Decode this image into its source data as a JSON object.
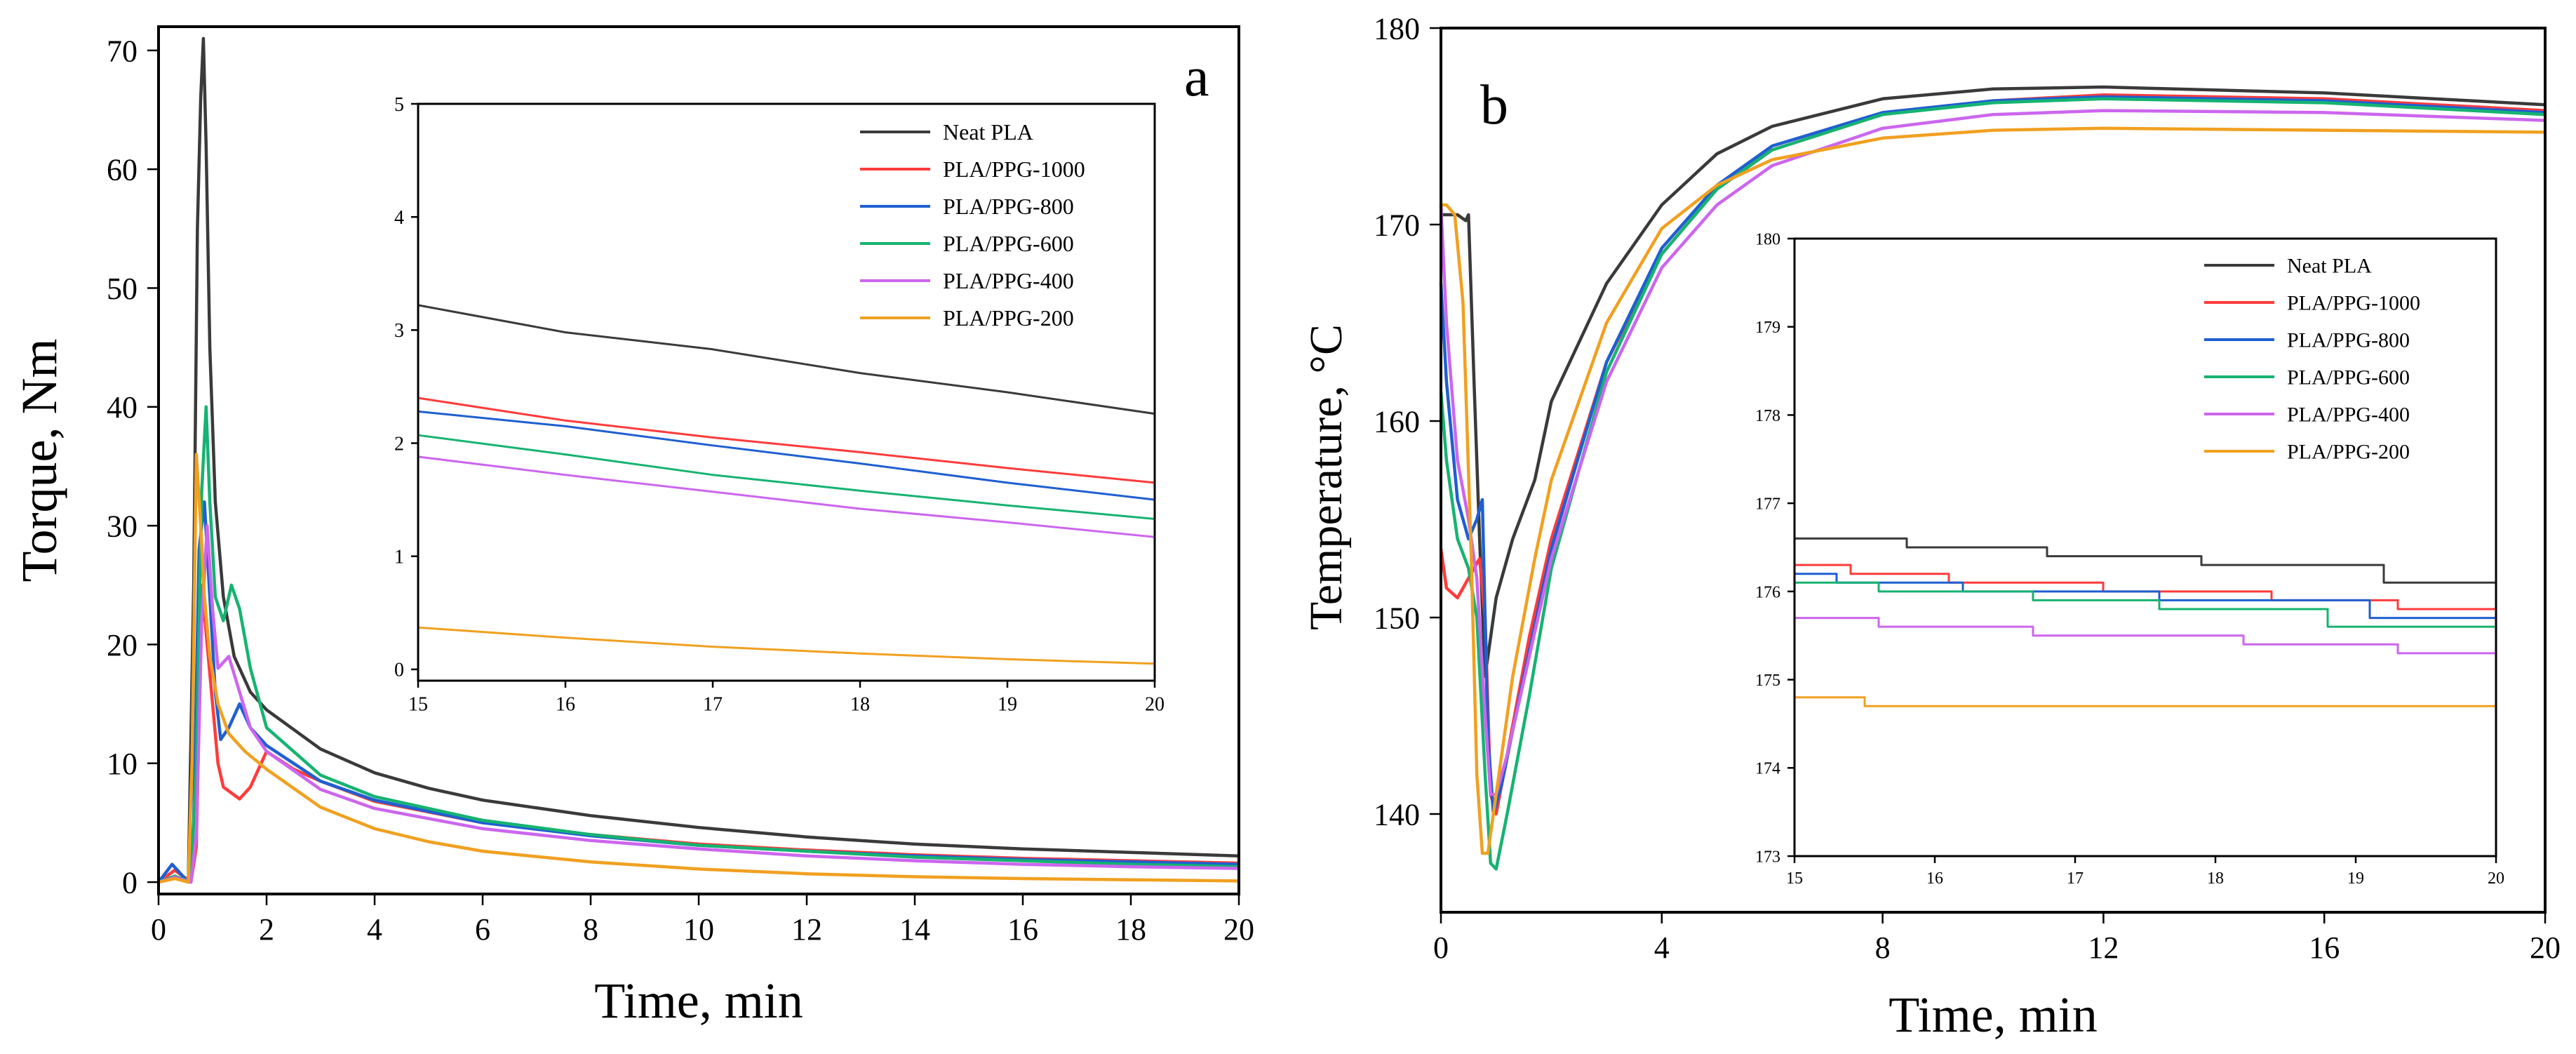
{
  "colors": {
    "Neat PLA": "#3a3a3a",
    "PLA/PPG-1000": "#ff3b3b",
    "PLA/PPG-800": "#1f5fd1",
    "PLA/PPG-600": "#16b371",
    "PLA/PPG-400": "#cc66ee",
    "PLA/PPG-200": "#f0a020"
  },
  "chart_data": [
    {
      "id": "a",
      "type": "line",
      "panel_label": "a",
      "xlabel": "Time, min",
      "ylabel": "Torque, Nm",
      "xlim": [
        0,
        20
      ],
      "ylim": [
        -1,
        72
      ],
      "xticks": [
        0,
        2,
        4,
        6,
        8,
        10,
        12,
        14,
        16,
        18,
        20
      ],
      "yticks": [
        0,
        10,
        20,
        30,
        40,
        50,
        60,
        70
      ],
      "series": [
        {
          "name": "Neat PLA",
          "x": [
            0,
            0.3,
            0.55,
            0.65,
            0.72,
            0.78,
            0.83,
            0.88,
            0.95,
            1.05,
            1.2,
            1.4,
            1.7,
            2,
            3,
            4,
            5,
            6,
            8,
            10,
            12,
            14,
            16,
            18,
            20
          ],
          "y": [
            0,
            0.5,
            0,
            25,
            55,
            66,
            71,
            62,
            45,
            32,
            24,
            19,
            16,
            14.5,
            11.2,
            9.2,
            7.9,
            6.9,
            5.6,
            4.6,
            3.8,
            3.2,
            2.8,
            2.5,
            2.2
          ]
        },
        {
          "name": "PLA/PPG-1000",
          "x": [
            0,
            0.3,
            0.6,
            0.7,
            0.8,
            0.9,
            1.0,
            1.1,
            1.2,
            1.35,
            1.5,
            1.7,
            2,
            2.5,
            3,
            4,
            6,
            8,
            10,
            12,
            14,
            16,
            18,
            20
          ],
          "y": [
            0,
            1,
            0,
            3,
            25,
            20,
            15,
            10,
            8,
            7.5,
            7,
            8,
            11,
            9.5,
            8.5,
            6.8,
            5,
            4,
            3.2,
            2.7,
            2.3,
            2,
            1.8,
            1.6
          ]
        },
        {
          "name": "PLA/PPG-800",
          "x": [
            0,
            0.25,
            0.55,
            0.65,
            0.75,
            0.85,
            0.95,
            1.05,
            1.15,
            1.3,
            1.5,
            1.7,
            2,
            3,
            4,
            6,
            8,
            10,
            12,
            14,
            16,
            18,
            20
          ],
          "y": [
            0,
            1.5,
            0,
            5,
            28,
            32,
            24,
            16,
            12,
            13,
            15,
            13,
            11.5,
            8.5,
            6.9,
            5,
            3.9,
            3.1,
            2.6,
            2.2,
            1.9,
            1.7,
            1.5
          ]
        },
        {
          "name": "PLA/PPG-600",
          "x": [
            0,
            0.3,
            0.6,
            0.7,
            0.8,
            0.88,
            0.95,
            1.05,
            1.2,
            1.35,
            1.5,
            1.7,
            2,
            3,
            4,
            6,
            8,
            10,
            12,
            14,
            16,
            18,
            20
          ],
          "y": [
            0,
            0.5,
            0,
            10,
            33,
            40,
            32,
            24,
            22,
            25,
            23,
            18,
            13,
            9,
            7.2,
            5.2,
            4,
            3.1,
            2.6,
            2.1,
            1.8,
            1.5,
            1.3
          ]
        },
        {
          "name": "PLA/PPG-400",
          "x": [
            0,
            0.3,
            0.6,
            0.7,
            0.8,
            0.9,
            1.0,
            1.1,
            1.3,
            1.5,
            1.7,
            2,
            3,
            4,
            6,
            8,
            10,
            12,
            14,
            16,
            18,
            20
          ],
          "y": [
            0,
            0.4,
            0,
            4,
            22,
            30,
            23,
            18,
            19,
            16,
            13,
            11,
            7.8,
            6.2,
            4.5,
            3.5,
            2.8,
            2.2,
            1.8,
            1.5,
            1.3,
            1.15
          ]
        },
        {
          "name": "PLA/PPG-200",
          "x": [
            0,
            0.3,
            0.55,
            0.62,
            0.7,
            0.78,
            0.85,
            0.95,
            1.1,
            1.3,
            1.6,
            2,
            3,
            4,
            5,
            6,
            8,
            10,
            12,
            14,
            16,
            18,
            20
          ],
          "y": [
            0,
            0.3,
            0,
            10,
            36,
            30,
            24,
            19,
            15,
            12.5,
            11,
            9.5,
            6.3,
            4.5,
            3.4,
            2.6,
            1.7,
            1.1,
            0.7,
            0.45,
            0.3,
            0.2,
            0.1
          ]
        }
      ]
    },
    {
      "id": "a-inset",
      "type": "line",
      "xlim": [
        15,
        20
      ],
      "ylim": [
        -0.1,
        5
      ],
      "xticks": [
        15,
        16,
        17,
        18,
        19,
        20
      ],
      "yticks": [
        0,
        1,
        2,
        3,
        4,
        5
      ],
      "legend": [
        "Neat PLA",
        "PLA/PPG-1000",
        "PLA/PPG-800",
        "PLA/PPG-600",
        "PLA/PPG-400",
        "PLA/PPG-200"
      ],
      "series": [
        {
          "name": "Neat PLA",
          "x": [
            15,
            16,
            17,
            18,
            19,
            20
          ],
          "y": [
            3.22,
            2.98,
            2.83,
            2.62,
            2.45,
            2.26
          ]
        },
        {
          "name": "PLA/PPG-1000",
          "x": [
            15,
            16,
            17,
            18,
            19,
            20
          ],
          "y": [
            2.4,
            2.2,
            2.05,
            1.92,
            1.78,
            1.65
          ]
        },
        {
          "name": "PLA/PPG-800",
          "x": [
            15,
            16,
            17,
            18,
            19,
            20
          ],
          "y": [
            2.28,
            2.15,
            1.98,
            1.82,
            1.65,
            1.5
          ]
        },
        {
          "name": "PLA/PPG-600",
          "x": [
            15,
            16,
            17,
            18,
            19,
            20
          ],
          "y": [
            2.07,
            1.9,
            1.72,
            1.58,
            1.45,
            1.33
          ]
        },
        {
          "name": "PLA/PPG-400",
          "x": [
            15,
            16,
            17,
            18,
            19,
            20
          ],
          "y": [
            1.88,
            1.72,
            1.57,
            1.42,
            1.3,
            1.17
          ]
        },
        {
          "name": "PLA/PPG-200",
          "x": [
            15,
            16,
            17,
            18,
            19,
            20
          ],
          "y": [
            0.37,
            0.28,
            0.2,
            0.14,
            0.09,
            0.05
          ]
        }
      ]
    },
    {
      "id": "b",
      "type": "line",
      "panel_label": "b",
      "xlabel": "Time, min",
      "ylabel": "Temperature, °C",
      "xlim": [
        0,
        20
      ],
      "ylim": [
        135,
        180
      ],
      "xticks": [
        0,
        4,
        8,
        12,
        16,
        20
      ],
      "yticks": [
        140,
        150,
        160,
        170,
        180
      ],
      "series": [
        {
          "name": "Neat PLA",
          "x": [
            0,
            0.3,
            0.45,
            0.5,
            0.6,
            0.7,
            0.8,
            1.0,
            1.3,
            1.7,
            2,
            3,
            4,
            5,
            6,
            8,
            10,
            12,
            16,
            20
          ],
          "y": [
            170.5,
            170.5,
            170.2,
            170.5,
            162,
            154,
            147,
            151,
            154,
            157,
            161,
            167,
            171,
            173.6,
            175,
            176.4,
            176.9,
            177,
            176.7,
            176.1
          ]
        },
        {
          "name": "PLA/PPG-1000",
          "x": [
            0,
            0.1,
            0.3,
            0.5,
            0.7,
            0.8,
            0.9,
            1.0,
            1.2,
            1.6,
            2,
            3,
            4,
            5,
            6,
            8,
            10,
            12,
            16,
            20
          ],
          "y": [
            153.5,
            151.5,
            151,
            152,
            153,
            150,
            141,
            140,
            143,
            149,
            154,
            163,
            168.5,
            171.8,
            173.8,
            175.6,
            176.3,
            176.6,
            176.4,
            175.8
          ]
        },
        {
          "name": "PLA/PPG-800",
          "x": [
            0,
            0.1,
            0.3,
            0.5,
            0.65,
            0.75,
            0.85,
            0.95,
            1.1,
            1.5,
            2,
            3,
            4,
            5,
            6,
            8,
            10,
            12,
            16,
            20
          ],
          "y": [
            167,
            162,
            156,
            154,
            155,
            156,
            144,
            140,
            141.5,
            147,
            153.5,
            163,
            168.8,
            172,
            174,
            175.7,
            176.3,
            176.5,
            176.3,
            175.7
          ]
        },
        {
          "name": "PLA/PPG-600",
          "x": [
            0,
            0.1,
            0.3,
            0.5,
            0.65,
            0.8,
            0.9,
            1.0,
            1.2,
            1.6,
            2,
            3,
            4,
            5,
            6,
            8,
            10,
            12,
            16,
            20
          ],
          "y": [
            161.5,
            158,
            154,
            152.5,
            150,
            142,
            137.5,
            137.2,
            140,
            146,
            152.5,
            162.5,
            168.5,
            171.8,
            173.8,
            175.6,
            176.2,
            176.4,
            176.2,
            175.6
          ]
        },
        {
          "name": "PLA/PPG-400",
          "x": [
            0,
            0.1,
            0.3,
            0.5,
            0.65,
            0.8,
            0.9,
            1.0,
            1.2,
            1.6,
            2,
            3,
            4,
            5,
            6,
            8,
            10,
            12,
            16,
            20
          ],
          "y": [
            171,
            165,
            158,
            155,
            152,
            145,
            141,
            141,
            143,
            148,
            153,
            162,
            167.8,
            171,
            173,
            174.9,
            175.6,
            175.8,
            175.7,
            175.3
          ]
        },
        {
          "name": "PLA/PPG-200",
          "x": [
            0,
            0.1,
            0.25,
            0.4,
            0.55,
            0.65,
            0.75,
            0.85,
            1.0,
            1.3,
            1.7,
            2,
            3,
            4,
            5,
            6,
            8,
            10,
            12,
            16,
            20
          ],
          "y": [
            171,
            171,
            170.5,
            166,
            153,
            142,
            138,
            138,
            141,
            147,
            153,
            157,
            165,
            169.8,
            172,
            173.3,
            174.4,
            174.8,
            174.9,
            174.8,
            174.7
          ]
        }
      ]
    },
    {
      "id": "b-inset",
      "type": "line",
      "xlim": [
        15,
        20
      ],
      "ylim": [
        173,
        180
      ],
      "xticks": [
        15,
        16,
        17,
        18,
        19,
        20
      ],
      "yticks": [
        173,
        174,
        175,
        176,
        177,
        178,
        179,
        180
      ],
      "legend": [
        "Neat PLA",
        "PLA/PPG-1000",
        "PLA/PPG-800",
        "PLA/PPG-600",
        "PLA/PPG-400",
        "PLA/PPG-200"
      ],
      "series": [
        {
          "name": "Neat PLA",
          "x": [
            15,
            15.8,
            15.8,
            16.8,
            16.8,
            17.9,
            17.9,
            19.2,
            19.2,
            20
          ],
          "y": [
            176.6,
            176.6,
            176.5,
            176.5,
            176.4,
            176.4,
            176.3,
            176.3,
            176.1,
            176.1
          ]
        },
        {
          "name": "PLA/PPG-1000",
          "x": [
            15,
            15.4,
            15.4,
            16.1,
            16.1,
            17.2,
            17.2,
            18.4,
            18.4,
            19.3,
            19.3,
            20
          ],
          "y": [
            176.3,
            176.3,
            176.2,
            176.2,
            176.1,
            176.1,
            176,
            176,
            175.9,
            175.9,
            175.8,
            175.8
          ]
        },
        {
          "name": "PLA/PPG-800",
          "x": [
            15,
            15.3,
            15.3,
            16.2,
            16.2,
            17.6,
            17.6,
            19.1,
            19.1,
            20
          ],
          "y": [
            176.2,
            176.2,
            176.1,
            176.1,
            176,
            176,
            175.9,
            175.9,
            175.7,
            175.7
          ]
        },
        {
          "name": "PLA/PPG-600",
          "x": [
            15,
            15.6,
            15.6,
            16.7,
            16.7,
            17.6,
            17.6,
            18.8,
            18.8,
            20
          ],
          "y": [
            176.1,
            176.1,
            176,
            176,
            175.9,
            175.9,
            175.8,
            175.8,
            175.6,
            175.6
          ]
        },
        {
          "name": "PLA/PPG-400",
          "x": [
            15,
            15.6,
            15.6,
            16.7,
            16.7,
            18.2,
            18.2,
            19.3,
            19.3,
            20
          ],
          "y": [
            175.7,
            175.7,
            175.6,
            175.6,
            175.5,
            175.5,
            175.4,
            175.4,
            175.3,
            175.3
          ]
        },
        {
          "name": "PLA/PPG-200",
          "x": [
            15,
            15.5,
            15.5,
            20
          ],
          "y": [
            174.8,
            174.8,
            174.7,
            174.7
          ]
        }
      ]
    }
  ]
}
